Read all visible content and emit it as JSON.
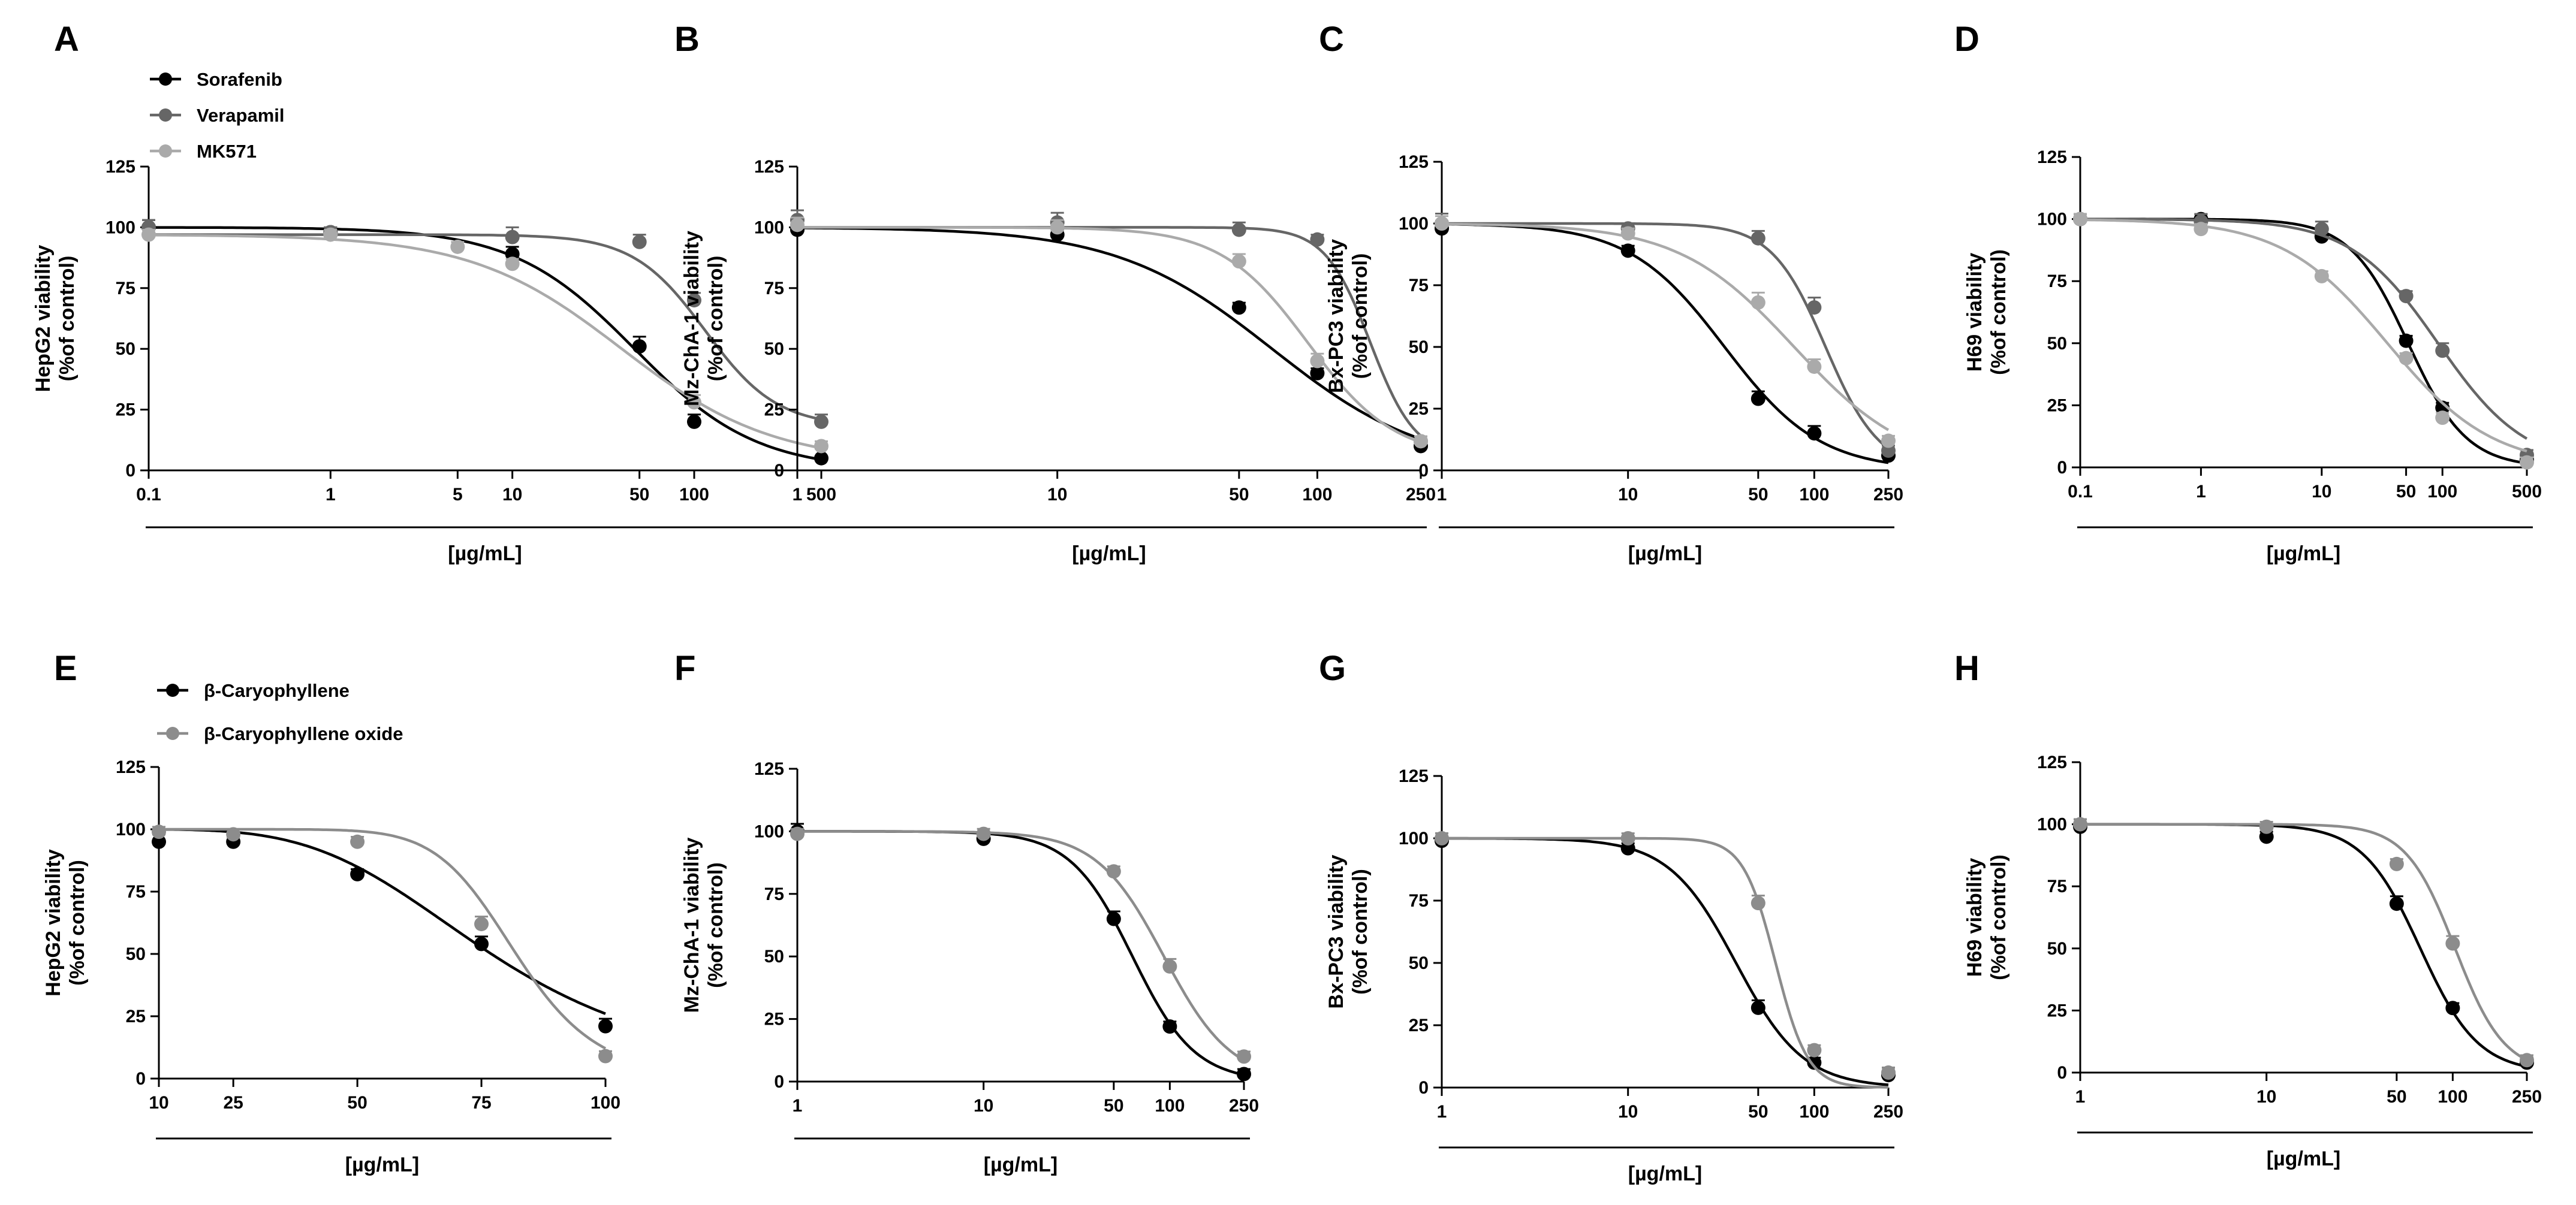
{
  "colors": {
    "black": "#000000",
    "dark_gray": "#666666",
    "light_gray": "#aaaaaa",
    "mid_gray": "#8c8c8c"
  },
  "legends": [
    {
      "entries": [
        {
          "label": "Sorafenib",
          "color": "#000000"
        },
        {
          "label": "Verapamil",
          "color": "#666666"
        },
        {
          "label": "MK571",
          "color": "#aaaaaa"
        }
      ]
    },
    {
      "entries": [
        {
          "label": "β-Caryophyllene",
          "color": "#000000"
        },
        {
          "label": "β-Caryophyllene oxide",
          "color": "#8c8c8c"
        }
      ]
    }
  ],
  "chart_data": [
    {
      "panel": "A",
      "type": "line",
      "xscale": "log",
      "ylabel": "HepG2 viability\n(%of control)",
      "xlabel": "[µg/mL]",
      "ylim": [
        0,
        125
      ],
      "yticks": [
        0,
        25,
        50,
        75,
        100,
        125
      ],
      "xlim": [
        0.1,
        500
      ],
      "xticks": [
        0.1,
        1,
        5,
        10,
        50,
        100,
        500
      ],
      "xtick_labels": [
        "0.1",
        "1",
        "5",
        "10",
        "50",
        "100",
        "500"
      ],
      "series": [
        {
          "name": "Sorafenib",
          "color": "#000000",
          "x": [
            0.1,
            1,
            10,
            50,
            100,
            500
          ],
          "y": [
            100,
            98,
            89,
            51,
            20,
            5
          ],
          "err": [
            3,
            2,
            3,
            4,
            3,
            4
          ],
          "fit": {
            "top": 100,
            "bottom": 0,
            "ec50": 47,
            "hill": 1.3
          }
        },
        {
          "name": "Verapamil",
          "color": "#666666",
          "x": [
            0.1,
            1,
            10,
            50,
            100,
            500
          ],
          "y": [
            100,
            98,
            96,
            94,
            70,
            20
          ],
          "err": [
            3,
            2,
            4,
            3,
            3,
            3
          ],
          "fit": {
            "top": 97,
            "bottom": 18,
            "ec50": 115,
            "hill": 2.2
          }
        },
        {
          "name": "MK571",
          "color": "#aaaaaa",
          "x": [
            0.1,
            1,
            5,
            10,
            100,
            500
          ],
          "y": [
            97,
            97,
            92,
            85,
            28,
            10
          ],
          "err": [
            2,
            2,
            2,
            2,
            3,
            2
          ],
          "fit": {
            "top": 97,
            "bottom": 3,
            "ec50": 40,
            "hill": 1.05
          }
        }
      ]
    },
    {
      "panel": "B",
      "type": "line",
      "xscale": "log",
      "ylabel": "Mz-ChA-1 viability\n(%of control)",
      "xlabel": "[µg/mL]",
      "ylim": [
        0,
        125
      ],
      "yticks": [
        0,
        25,
        50,
        75,
        100,
        125
      ],
      "xlim": [
        1,
        250
      ],
      "xticks": [
        1,
        10,
        50,
        100,
        250
      ],
      "xtick_labels": [
        "1",
        "10",
        "50",
        "100",
        "250"
      ],
      "series": [
        {
          "name": "Sorafenib",
          "color": "#000000",
          "x": [
            1,
            10,
            50,
            100,
            250
          ],
          "y": [
            99,
            97,
            67,
            40,
            10
          ],
          "err": [
            3,
            2,
            2,
            2,
            2
          ],
          "fit": {
            "top": 100,
            "bottom": 0,
            "ec50": 67,
            "hill": 1.45
          }
        },
        {
          "name": "Verapamil",
          "color": "#666666",
          "x": [
            1,
            10,
            50,
            100,
            250
          ],
          "y": [
            103,
            102,
            99,
            95,
            12
          ],
          "err": [
            4,
            4,
            3,
            2,
            2
          ],
          "fit": {
            "top": 100,
            "bottom": 5,
            "ec50": 160,
            "hill": 5
          }
        },
        {
          "name": "MK571",
          "color": "#aaaaaa",
          "x": [
            1,
            10,
            50,
            100,
            250
          ],
          "y": [
            101,
            100,
            86,
            45,
            12
          ],
          "err": [
            3,
            3,
            3,
            3,
            2
          ],
          "fit": {
            "top": 100,
            "bottom": 5,
            "ec50": 92,
            "hill": 2.6
          }
        }
      ]
    },
    {
      "panel": "C",
      "type": "line",
      "xscale": "log",
      "ylabel": "Bx-PC3 viability\n(%of control)",
      "xlabel": "[µg/mL]",
      "ylim": [
        0,
        125
      ],
      "yticks": [
        0,
        25,
        50,
        75,
        100,
        125
      ],
      "xlim": [
        1,
        250
      ],
      "xticks": [
        1,
        10,
        50,
        100,
        250
      ],
      "xtick_labels": [
        "1",
        "10",
        "50",
        "100",
        "250"
      ],
      "series": [
        {
          "name": "Sorafenib",
          "color": "#000000",
          "x": [
            1,
            10,
            50,
            100,
            250
          ],
          "y": [
            98,
            89,
            29,
            15,
            6
          ],
          "err": [
            3,
            2,
            3,
            3,
            2
          ],
          "fit": {
            "top": 100,
            "bottom": 0,
            "ec50": 33,
            "hill": 1.7
          }
        },
        {
          "name": "Verapamil",
          "color": "#666666",
          "x": [
            1,
            10,
            50,
            100,
            250
          ],
          "y": [
            100,
            98,
            94,
            66,
            8
          ],
          "err": [
            4,
            2,
            3,
            4,
            2
          ],
          "fit": {
            "top": 100,
            "bottom": 0,
            "ec50": 115,
            "hill": 3
          }
        },
        {
          "name": "MK571",
          "color": "#aaaaaa",
          "x": [
            1,
            10,
            50,
            100,
            250
          ],
          "y": [
            100,
            96,
            68,
            42,
            12
          ],
          "err": [
            3,
            2,
            4,
            3,
            2
          ],
          "fit": {
            "top": 100,
            "bottom": 0,
            "ec50": 78,
            "hill": 1.4
          }
        }
      ]
    },
    {
      "panel": "D",
      "type": "line",
      "xscale": "log",
      "ylabel": "H69 viability\n(%of control)",
      "xlabel": "[µg/mL]",
      "ylim": [
        0,
        125
      ],
      "yticks": [
        0,
        25,
        50,
        75,
        100,
        125
      ],
      "xlim": [
        0.1,
        500
      ],
      "xticks": [
        0.1,
        1,
        10,
        50,
        100,
        500
      ],
      "xtick_labels": [
        "0.1",
        "1",
        "10",
        "50",
        "100",
        "500"
      ],
      "series": [
        {
          "name": "Sorafenib",
          "color": "#000000",
          "x": [
            0.1,
            1,
            10,
            50,
            100,
            500
          ],
          "y": [
            100,
            100,
            93,
            51,
            24,
            3
          ],
          "err": [
            2,
            2,
            3,
            2,
            2,
            2
          ],
          "fit": {
            "top": 100,
            "bottom": 0,
            "ec50": 52,
            "hill": 1.8
          }
        },
        {
          "name": "Verapamil",
          "color": "#666666",
          "x": [
            0.1,
            1,
            10,
            50,
            100,
            500
          ],
          "y": [
            100,
            99,
            96,
            69,
            47,
            5
          ],
          "err": [
            2,
            3,
            3,
            2,
            3,
            2
          ],
          "fit": {
            "top": 100,
            "bottom": 0,
            "ec50": 92,
            "hill": 1.2
          }
        },
        {
          "name": "MK571",
          "color": "#aaaaaa",
          "x": [
            0.1,
            1,
            10,
            50,
            100,
            500
          ],
          "y": [
            100,
            96,
            77,
            44,
            20,
            2
          ],
          "err": [
            2,
            2,
            2,
            2,
            2,
            2
          ],
          "fit": {
            "top": 100,
            "bottom": 0,
            "ec50": 35,
            "hill": 1.0
          }
        }
      ]
    },
    {
      "panel": "E",
      "type": "line",
      "xscale": "linear",
      "ylabel": "HepG2 viability\n(%of control)",
      "xlabel": "[µg/mL]",
      "ylim": [
        0,
        125
      ],
      "yticks": [
        0,
        25,
        50,
        75,
        100,
        125
      ],
      "xlim": [
        10,
        100
      ],
      "xticks": [
        10,
        25,
        50,
        75,
        100
      ],
      "xtick_labels": [
        "10",
        "25",
        "50",
        "75",
        "100"
      ],
      "series": [
        {
          "name": "β-Caryophyllene",
          "color": "#000000",
          "x": [
            10,
            25,
            50,
            75,
            100
          ],
          "y": [
            95,
            95,
            82,
            54,
            21
          ],
          "err": [
            3,
            2,
            2,
            3,
            3
          ],
          "fit": {
            "top": 100,
            "bottom": 0,
            "ec50": 77,
            "hill": 4
          }
        },
        {
          "name": "β-Caryophyllene oxide",
          "color": "#8c8c8c",
          "x": [
            10,
            25,
            50,
            75,
            100
          ],
          "y": [
            99,
            98,
            95,
            62,
            9
          ],
          "err": [
            2,
            2,
            2,
            3,
            2
          ],
          "fit": {
            "top": 100,
            "bottom": 0,
            "ec50": 82,
            "hill": 10
          }
        }
      ]
    },
    {
      "panel": "F",
      "type": "line",
      "xscale": "log",
      "ylabel": "Mz-ChA-1 viability\n(%of control)",
      "xlabel": "[µg/mL]",
      "ylim": [
        0,
        125
      ],
      "yticks": [
        0,
        25,
        50,
        75,
        100,
        125
      ],
      "xlim": [
        1,
        250
      ],
      "xticks": [
        1,
        10,
        50,
        100,
        250
      ],
      "xtick_labels": [
        "1",
        "10",
        "50",
        "100",
        "250"
      ],
      "series": [
        {
          "name": "β-Caryophyllene",
          "color": "#000000",
          "x": [
            1,
            10,
            50,
            100,
            250
          ],
          "y": [
            100,
            97,
            65,
            22,
            3
          ],
          "err": [
            3,
            2,
            3,
            2,
            2
          ],
          "fit": {
            "top": 100,
            "bottom": 0,
            "ec50": 63,
            "hill": 2.6
          }
        },
        {
          "name": "β-Caryophyllene oxide",
          "color": "#8c8c8c",
          "x": [
            1,
            10,
            50,
            100,
            250
          ],
          "y": [
            99,
            99,
            84,
            46,
            10
          ],
          "err": [
            2,
            2,
            2,
            3,
            2
          ],
          "fit": {
            "top": 100,
            "bottom": 0,
            "ec50": 93,
            "hill": 2.4
          }
        }
      ]
    },
    {
      "panel": "G",
      "type": "line",
      "xscale": "log",
      "ylabel": "Bx-PC3 viability\n(%of control)",
      "xlabel": "[µg/mL]",
      "ylim": [
        0,
        125
      ],
      "yticks": [
        0,
        25,
        50,
        75,
        100,
        125
      ],
      "xlim": [
        1,
        250
      ],
      "xticks": [
        1,
        10,
        50,
        100,
        250
      ],
      "xtick_labels": [
        "1",
        "10",
        "50",
        "100",
        "250"
      ],
      "series": [
        {
          "name": "β-Caryophyllene",
          "color": "#000000",
          "x": [
            1,
            10,
            50,
            100,
            250
          ],
          "y": [
            99,
            96,
            32,
            10,
            5
          ],
          "err": [
            3,
            2,
            3,
            2,
            3
          ],
          "fit": {
            "top": 100,
            "bottom": 0,
            "ec50": 38,
            "hill": 2.4
          }
        },
        {
          "name": "β-Caryophyllene oxide",
          "color": "#8c8c8c",
          "x": [
            1,
            10,
            50,
            100,
            250
          ],
          "y": [
            100,
            100,
            74,
            15,
            6
          ],
          "err": [
            2,
            2,
            3,
            2,
            2
          ],
          "fit": {
            "top": 100,
            "bottom": 0,
            "ec50": 62,
            "hill": 5
          }
        }
      ]
    },
    {
      "panel": "H",
      "type": "line",
      "xscale": "log",
      "ylabel": "H69 viability\n(%of control)",
      "xlabel": "[µg/mL]",
      "ylim": [
        0,
        125
      ],
      "yticks": [
        0,
        25,
        50,
        75,
        100,
        125
      ],
      "xlim": [
        1,
        250
      ],
      "xticks": [
        1,
        10,
        50,
        100,
        250
      ],
      "xtick_labels": [
        "1",
        "10",
        "50",
        "100",
        "250"
      ],
      "series": [
        {
          "name": "β-Caryophyllene",
          "color": "#000000",
          "x": [
            1,
            10,
            50,
            100,
            250
          ],
          "y": [
            99,
            95,
            68,
            26,
            4
          ],
          "err": [
            3,
            2,
            3,
            2,
            2
          ],
          "fit": {
            "top": 100,
            "bottom": 0,
            "ec50": 67,
            "hill": 2.8
          }
        },
        {
          "name": "β-Caryophyllene oxide",
          "color": "#8c8c8c",
          "x": [
            1,
            10,
            50,
            100,
            250
          ],
          "y": [
            100,
            99,
            84,
            52,
            5
          ],
          "err": [
            2,
            2,
            2,
            3,
            2
          ],
          "fit": {
            "top": 100,
            "bottom": 0,
            "ec50": 103,
            "hill": 3.3
          }
        }
      ]
    }
  ]
}
